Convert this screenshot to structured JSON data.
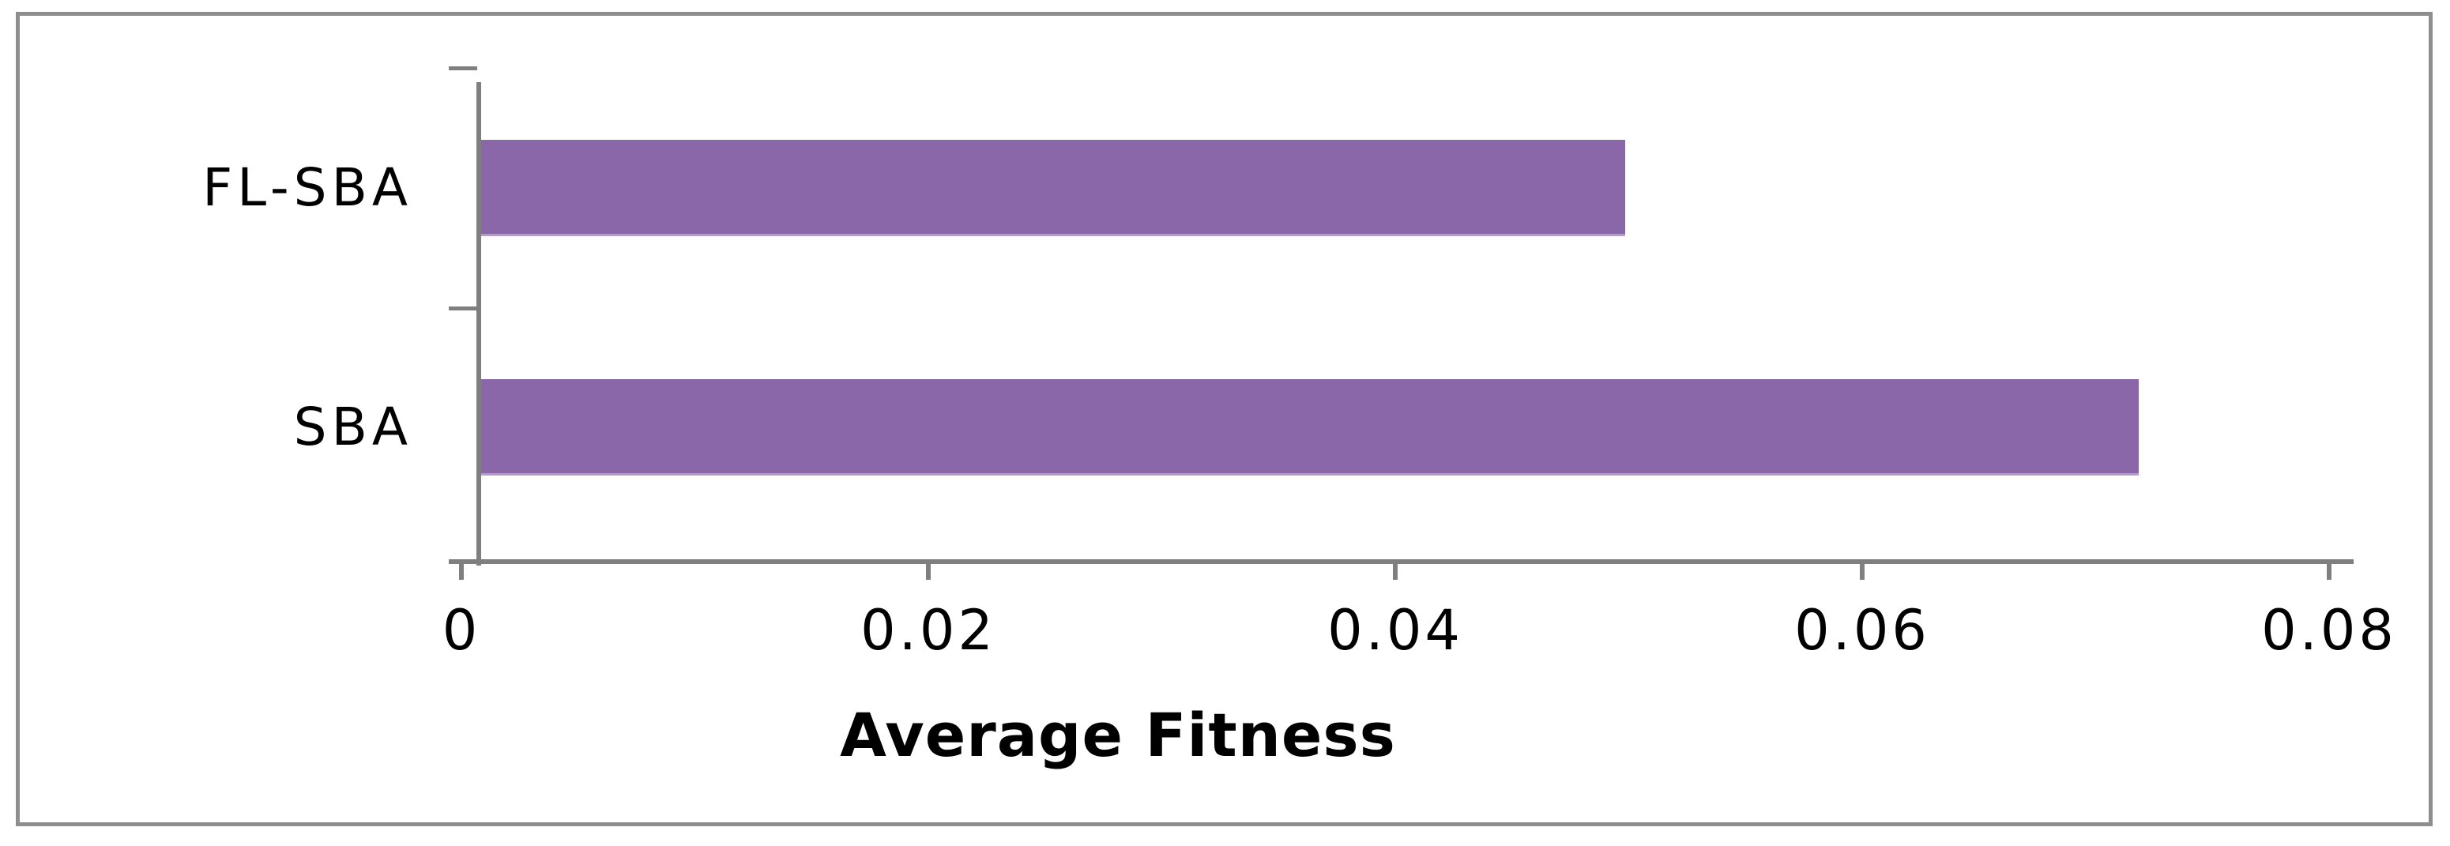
{
  "chart_data": {
    "type": "bar",
    "orientation": "horizontal",
    "title": "",
    "xlabel": "Average Fitness",
    "ylabel": "",
    "categories": [
      "FL-SBA",
      "SBA"
    ],
    "values": [
      0.049,
      0.071
    ],
    "series": [
      {
        "name": "Average Fitness",
        "values": [
          0.049,
          0.071
        ]
      }
    ],
    "xlim": [
      0,
      0.08
    ],
    "x_ticks": [
      {
        "value": 0,
        "label": "0"
      },
      {
        "value": 0.02,
        "label": "0.02"
      },
      {
        "value": 0.04,
        "label": "0.04"
      },
      {
        "value": 0.06,
        "label": "0.06"
      },
      {
        "value": 0.08,
        "label": "0.08"
      }
    ],
    "grid": false,
    "legend": false,
    "colors": {
      "bar_fill": "#8a67a9",
      "axis_line": "#7f7f7f",
      "chart_border": "#8e8e8e",
      "text": "#000000",
      "background": "#ffffff"
    }
  }
}
